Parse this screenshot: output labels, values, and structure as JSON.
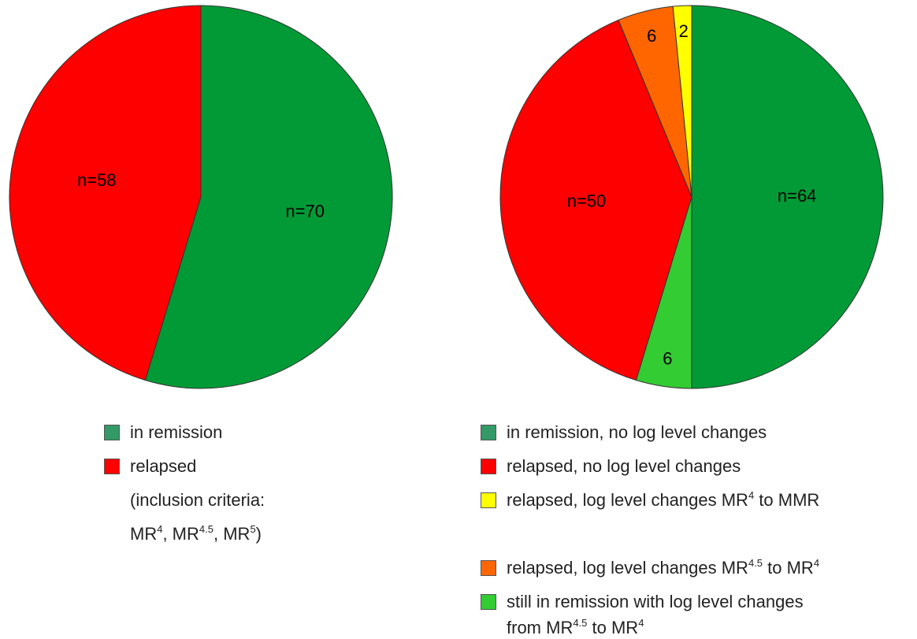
{
  "chart_data": [
    {
      "type": "pie",
      "values": [
        70,
        58
      ],
      "value_labels": [
        "n=70",
        "n=58"
      ],
      "colors": [
        "#029a36",
        "#ff0000"
      ],
      "legend": [
        {
          "color": "#339966",
          "lines": [
            [
              {
                "text": "in remission"
              }
            ]
          ]
        },
        {
          "color": "#ff0000",
          "lines": [
            [
              {
                "text": "relapsed"
              }
            ],
            [
              {
                "text": "(inclusion criteria:"
              }
            ],
            [
              {
                "text": "MR"
              },
              {
                "sup": "4"
              },
              {
                "text": ", MR"
              },
              {
                "sup": "4.5"
              },
              {
                "text": ", MR"
              },
              {
                "sup": "5"
              },
              {
                "text": ")"
              }
            ]
          ]
        }
      ]
    },
    {
      "type": "pie",
      "values": [
        64,
        6,
        50,
        6,
        2
      ],
      "value_labels": [
        "n=64",
        "6",
        "n=50",
        "6",
        "2"
      ],
      "colors": [
        "#029a36",
        "#33cc33",
        "#ff0000",
        "#ff6600",
        "#ffff00"
      ],
      "legend": [
        {
          "color": "#339966",
          "lines": [
            [
              {
                "text": "in remission, no log level changes"
              }
            ]
          ]
        },
        {
          "color": "#ff0000",
          "lines": [
            [
              {
                "text": "relapsed, no log level changes"
              }
            ]
          ]
        },
        {
          "color": "#ffff00",
          "lines": [
            [
              {
                "text": "relapsed, log level changes MR"
              },
              {
                "sup": "4"
              },
              {
                "text": " to MMR"
              }
            ]
          ]
        },
        {
          "color": "#ff6600",
          "lines": [
            [
              {
                "text": "relapsed, log level changes MR"
              },
              {
                "sup": "4.5"
              },
              {
                "text": " to MR"
              },
              {
                "sup": "4"
              }
            ]
          ]
        },
        {
          "color": "#33cc33",
          "lines": [
            [
              {
                "text": "still in remission with log level changes"
              }
            ],
            [
              {
                "text": "from MR"
              },
              {
                "sup": "4.5"
              },
              {
                "text": " to MR"
              },
              {
                "sup": "4"
              }
            ]
          ]
        }
      ]
    }
  ]
}
